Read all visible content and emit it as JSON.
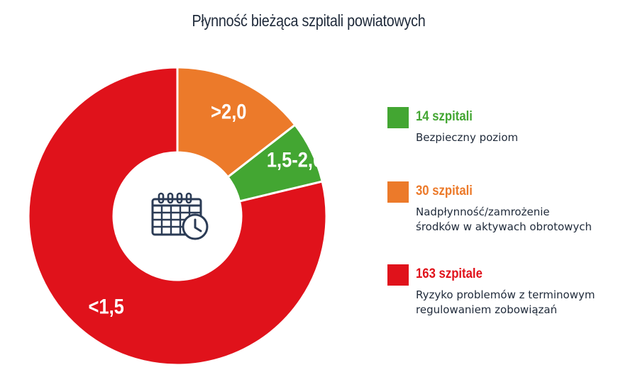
{
  "title": "Płynność bieżąca szpitali powiatowych",
  "colors": {
    "green": "#43a632",
    "orange": "#ec7a2a",
    "red": "#e0121b",
    "icon": "#2b3b55"
  },
  "center_icon": "calendar-clock-icon",
  "chart_data": {
    "type": "pie",
    "title": "Płynność bieżąca szpitali powiatowych",
    "unit": "szpitali",
    "slices": [
      {
        "label": ">2,0",
        "value": 30,
        "color": "#ec7a2a",
        "legend_count": "30 szpitali",
        "legend_desc": "Nadpłynność/zamrożenie\nśrodków w aktywach obrotowych"
      },
      {
        "label": "1,5-2,0",
        "value": 14,
        "color": "#43a632",
        "legend_count": "14 szpitali",
        "legend_desc": "Bezpieczny poziom"
      },
      {
        "label": "<1,5",
        "value": 163,
        "color": "#e0121b",
        "legend_count": "163 szpitale",
        "legend_desc": "Ryzyko problemów z terminowym\nregulowaniem zobowiązań"
      }
    ]
  },
  "legend": [
    {
      "count": "14 szpitali",
      "desc": "Bezpieczny poziom",
      "color": "#43a632"
    },
    {
      "count": "30 szpitali",
      "desc": "Nadpłynność/zamrożenie\nśrodków w aktywach obrotowych",
      "color": "#ec7a2a"
    },
    {
      "count": "163 szpitale",
      "desc": "Ryzyko problemów z terminowym\nregulowaniem zobowiązań",
      "color": "#e0121b"
    }
  ]
}
